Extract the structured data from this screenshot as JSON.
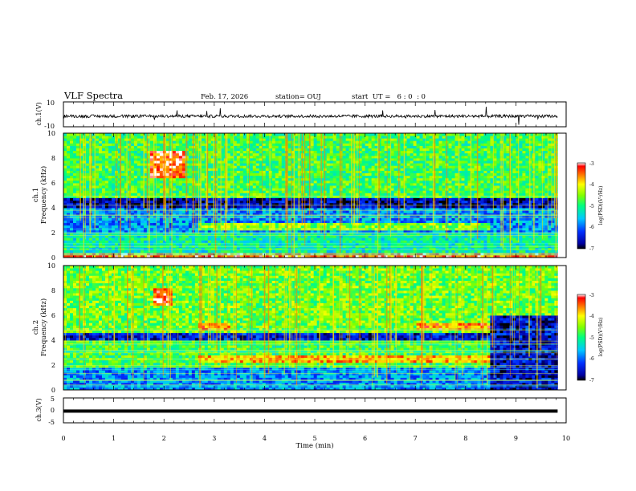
{
  "header": {
    "title": "VLF Spectra",
    "date": "Feb. 17, 2026",
    "station": "station= OUJ",
    "start_ut": "start  UT =   6 : 0  : 0"
  },
  "chart_data": [
    {
      "type": "line",
      "name": "ch1-waveform",
      "ylabel": "ch.1(V)",
      "ylim": [
        -10,
        10
      ],
      "yticks": [
        "10",
        "-10"
      ],
      "x_range_min": [
        0,
        9.83
      ],
      "description_values": {
        "baseline": -1.5,
        "noise_amplitude": 1.2
      }
    },
    {
      "type": "heatmap",
      "name": "ch1-spectrogram",
      "ylabel": "ch.1\nFrequency (kHz)",
      "ylabel_lines": [
        "ch.1",
        "Frequency (kHz)"
      ],
      "ylim": [
        0,
        10
      ],
      "yticks": [
        "0",
        "2",
        "4",
        "6",
        "8",
        "10"
      ],
      "colorbar": {
        "label": "log(PSD)(V²/Hz)",
        "range": [
          -7,
          -3
        ],
        "ticks": [
          "-3",
          "-4",
          "-5",
          "-6",
          "-7"
        ]
      },
      "bands_kHz": [
        {
          "from": 0.0,
          "to": 0.5,
          "level": -3.5
        },
        {
          "from": 0.5,
          "to": 2.0,
          "level": -5.2
        },
        {
          "from": 2.0,
          "to": 4.0,
          "level": -5.8
        },
        {
          "from": 4.0,
          "to": 4.8,
          "level": -6.6
        },
        {
          "from": 4.8,
          "to": 10.0,
          "level": -4.8
        }
      ],
      "features": [
        {
          "t_min": [
            1.7,
            2.4
          ],
          "f_kHz": [
            6.5,
            8.5
          ],
          "level": -3.3
        },
        {
          "t_min": [
            2.7,
            8.5
          ],
          "f_kHz": [
            2.2,
            2.8
          ],
          "level": -4.5
        }
      ]
    },
    {
      "type": "heatmap",
      "name": "ch2-spectrogram",
      "ylabel_lines": [
        "ch.2",
        "Frequency (kHz)"
      ],
      "ylim": [
        0,
        10
      ],
      "yticks": [
        "0",
        "2",
        "4",
        "6",
        "8",
        "10"
      ],
      "colorbar": {
        "label": "log(PSD)(V²/Hz)",
        "range": [
          -7,
          -3
        ],
        "ticks": [
          "-3",
          "-4",
          "-5",
          "-6",
          "-7"
        ]
      },
      "bands_kHz": [
        {
          "from": 0.0,
          "to": 1.8,
          "level": -5.8
        },
        {
          "from": 1.8,
          "to": 4.0,
          "level": -4.8
        },
        {
          "from": 4.0,
          "to": 4.6,
          "level": -6.4
        },
        {
          "from": 4.6,
          "to": 10.0,
          "level": -4.6
        }
      ],
      "features": [
        {
          "t_min": [
            1.8,
            2.2
          ],
          "f_kHz": [
            6.8,
            8.2
          ],
          "level": -3.2
        },
        {
          "t_min": [
            2.7,
            3.3
          ],
          "f_kHz": [
            4.8,
            5.4
          ],
          "level": -3.6
        },
        {
          "t_min": [
            7.0,
            8.5
          ],
          "f_kHz": [
            4.9,
            5.4
          ],
          "level": -3.6
        },
        {
          "t_min": [
            2.7,
            8.5
          ],
          "f_kHz": [
            2.3,
            2.8
          ],
          "level": -3.8
        },
        {
          "t_min": [
            8.5,
            9.83
          ],
          "f_kHz": [
            0.0,
            6.0
          ],
          "level": -6.5
        }
      ]
    },
    {
      "type": "line",
      "name": "ch3-waveform",
      "ylabel": "ch.3(V)",
      "ylim": [
        -5,
        5
      ],
      "yticks": [
        "5",
        "0",
        "-5"
      ],
      "value": -0.3
    }
  ],
  "xaxis": {
    "label": "Time (min)",
    "range": [
      0,
      10
    ],
    "ticks": [
      "0",
      "1",
      "2",
      "3",
      "4",
      "5",
      "6",
      "7",
      "8",
      "9",
      "10"
    ]
  },
  "colors": {
    "axis": "#000000",
    "background": "#ffffff"
  }
}
